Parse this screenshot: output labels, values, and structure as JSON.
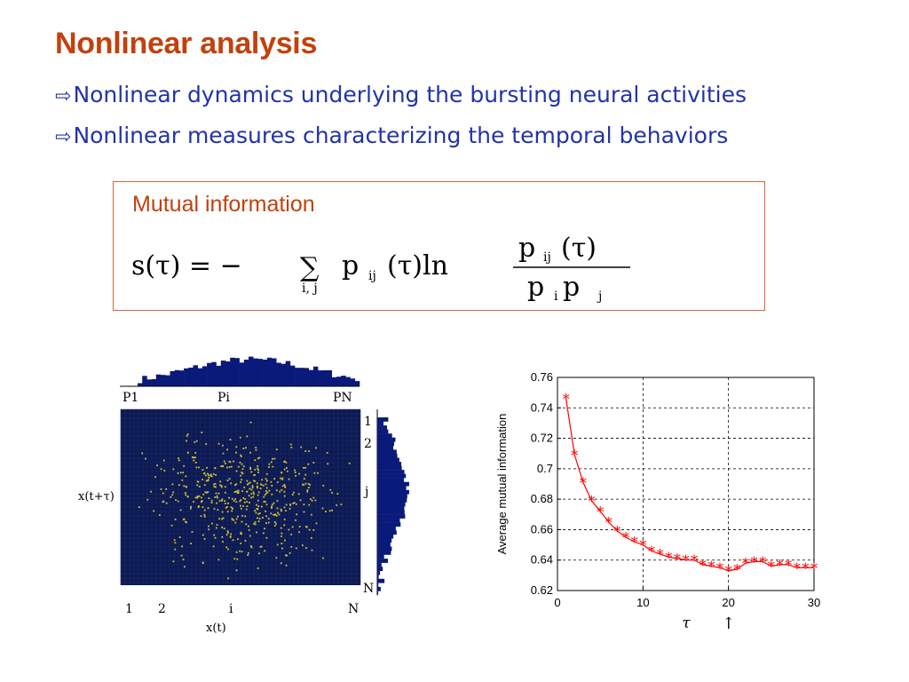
{
  "slide": {
    "title": "Nonlinear analysis",
    "bullets": [
      {
        "arrow": "⇨",
        "text": "Nonlinear dynamics underlying the bursting neural activities"
      },
      {
        "arrow": "⇨",
        "text": "Nonlinear measures characterizing the temporal behaviors"
      }
    ]
  },
  "formula_box": {
    "title": "Mutual information",
    "lhs": "s(τ) = −",
    "sum_sub": "i, j",
    "term": "p",
    "term_sub": "ij",
    "term_arg": "(τ)ln",
    "num": "p",
    "num_sub": "ij",
    "num_arg": "(τ)",
    "den_p1": "p",
    "den_sub1": "i",
    "den_p2": "p",
    "den_sub2": "j"
  },
  "left_figure": {
    "top_labels": [
      "P1",
      "Pi",
      "PN"
    ],
    "right_labels": [
      "1",
      "2",
      "j",
      "N"
    ],
    "bottom_labels": [
      "1",
      "2",
      "i",
      "N"
    ],
    "xlabel": "x(t)",
    "ylabel": "x(t+τ)",
    "colors": {
      "histogram": "#0a1a7a",
      "grid_bg": "#0c1a50",
      "dots": "#d8c030"
    }
  },
  "chart_data": {
    "type": "line",
    "xlabel": "τ",
    "ylabel": "Average mutual information",
    "xlim": [
      0,
      30
    ],
    "ylim": [
      0.62,
      0.76
    ],
    "xticks": [
      "0",
      "10",
      "20",
      "30"
    ],
    "yticks": [
      "0.62",
      "0.64",
      "0.66",
      "0.68",
      "0.7",
      "0.72",
      "0.74",
      "0.76"
    ],
    "grid": true,
    "marker": "*",
    "color": "#ff0000",
    "annotation": {
      "type": "arrow",
      "x": 20,
      "label": "↑"
    },
    "series": [
      {
        "x": [
          1,
          2,
          3,
          4,
          5,
          6,
          7,
          8,
          9,
          10,
          11,
          12,
          13,
          14,
          15,
          16,
          17,
          18,
          19,
          20,
          21,
          22,
          23,
          24,
          25,
          26,
          27,
          28,
          29,
          30
        ],
        "y": [
          0.746,
          0.709,
          0.691,
          0.679,
          0.672,
          0.665,
          0.659,
          0.655,
          0.652,
          0.65,
          0.646,
          0.644,
          0.642,
          0.641,
          0.64,
          0.64,
          0.637,
          0.636,
          0.635,
          0.633,
          0.634,
          0.638,
          0.639,
          0.639,
          0.636,
          0.637,
          0.637,
          0.635,
          0.635,
          0.635
        ]
      }
    ]
  }
}
